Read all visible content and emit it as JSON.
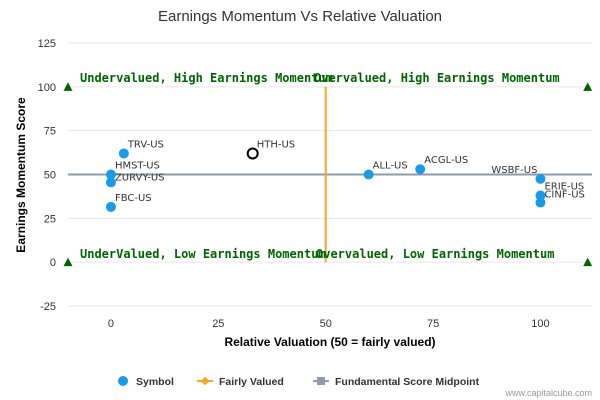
{
  "chart_data": {
    "type": "scatter",
    "title": "Earnings Momentum Vs Relative Valuation",
    "xlabel": "Relative Valuation (50 = fairly valued)",
    "ylabel": "Earnings Momentum Score",
    "xlim": [
      -10,
      112
    ],
    "ylim": [
      -25,
      125
    ],
    "x_ticks": [
      "0",
      "25",
      "50",
      "75",
      "100"
    ],
    "x_tick_values": [
      0,
      25,
      50,
      75,
      100
    ],
    "y_ticks": [
      "125",
      "100",
      "75",
      "50",
      "25",
      "0",
      "-25"
    ],
    "y_tick_values": [
      125,
      100,
      75,
      50,
      25,
      0,
      -25
    ],
    "grid": "horizontal",
    "series": [
      {
        "name": "Symbol",
        "color": "#1a9be6",
        "points": [
          {
            "label": "TRV-US",
            "x": 3,
            "y": 62
          },
          {
            "label": "HMST-US",
            "x": 0,
            "y": 50
          },
          {
            "label": "ZURVY-US",
            "x": 0,
            "y": 45.5
          },
          {
            "label": "FBC-US",
            "x": 0,
            "y": 31.5
          },
          {
            "label": "ALL-US",
            "x": 60,
            "y": 50
          },
          {
            "label": "ACGL-US",
            "x": 72,
            "y": 53
          },
          {
            "label": "WSBF-US",
            "x": 100,
            "y": 47.5
          },
          {
            "label": "ERIE-US",
            "x": 100,
            "y": 38
          },
          {
            "label": "CINF-US",
            "x": 100,
            "y": 34
          }
        ],
        "highlight": {
          "label": "HTH-US",
          "x": 33,
          "y": 62
        }
      },
      {
        "name": "Fairly Valued",
        "color": "#f5a623",
        "x": 50
      },
      {
        "name": "Fundamental Score Midpoint",
        "color": "#8e9aa8",
        "y": 50
      }
    ],
    "quadrant_labels": [
      {
        "text": "Undervalued, High Earnings Momentum"
      },
      {
        "text": "Overvalued, High Earnings Momentum"
      },
      {
        "text": "UnderValued, Low Earnings Momentum"
      },
      {
        "text": "Overvalued, Low Earnings Momentum"
      }
    ],
    "quadrant_marker_color": "#006400",
    "legend_position": "bottom"
  },
  "credit": "www.capitalcube.com"
}
